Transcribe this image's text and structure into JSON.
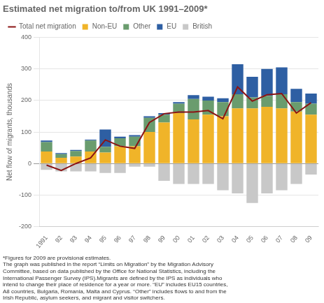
{
  "chart_data": {
    "type": "bar",
    "title": "Estimated net migration to/from UK 1991–2009*",
    "ylabel": "Net flow of migrants, thousands",
    "categories": [
      "1991",
      "92",
      "93",
      "94",
      "95",
      "96",
      "97",
      "98",
      "99",
      "00",
      "01",
      "02",
      "03",
      "04",
      "05",
      "06",
      "07",
      "08",
      "09"
    ],
    "series": [
      {
        "name": "Non-EU",
        "color": "#f0b429",
        "values": [
          38,
          18,
          22,
          38,
          35,
          55,
          55,
          100,
          130,
          160,
          140,
          155,
          150,
          175,
          175,
          180,
          175,
          165,
          155
        ]
      },
      {
        "name": "Other",
        "color": "#6a9c6e",
        "values": [
          30,
          12,
          18,
          35,
          18,
          25,
          30,
          45,
          25,
          30,
          65,
          45,
          45,
          45,
          35,
          35,
          45,
          30,
          35
        ]
      },
      {
        "name": "EU",
        "color": "#2e5fa3",
        "values": [
          5,
          3,
          3,
          3,
          55,
          5,
          5,
          5,
          5,
          5,
          12,
          12,
          12,
          95,
          65,
          85,
          85,
          42,
          32
        ]
      },
      {
        "name": "British",
        "color": "#c8c8c8",
        "values": [
          -20,
          -25,
          -25,
          -25,
          -30,
          -30,
          -10,
          -10,
          -55,
          -65,
          -65,
          -65,
          -85,
          -95,
          -125,
          -95,
          -85,
          -65,
          -35
        ]
      },
      {
        "name": "Total net migration",
        "type": "line",
        "color": "#8b1414",
        "values": [
          -5,
          -22,
          0,
          18,
          75,
          55,
          48,
          130,
          158,
          163,
          163,
          168,
          142,
          243,
          198,
          218,
          222,
          160,
          193
        ]
      }
    ],
    "stacked": true,
    "ylim": [
      -200,
      400
    ],
    "yticks": [
      -200,
      -100,
      0,
      100,
      200,
      300,
      400
    ],
    "grid": true,
    "annotations": [
      "*Figures for 2009 are provisional estimates.",
      "The graph was published in the report “Limits on Migration” by the Migration Advisory\nCommittee, based on data published by the Office for National Statistics, including the\nInternational Passenger Survey (IPS).Migrants are defined by the IPS as individuals who\nintend to change their place of residence for a year or more. “EU” includes EU15 countries,\nA8 countries, Bulgaria, Romania, Malta and Cyprus. “Other” includes flows to and from the\nIrish Republic, asylum seekers, and migrant and visitor switchers."
    ]
  }
}
